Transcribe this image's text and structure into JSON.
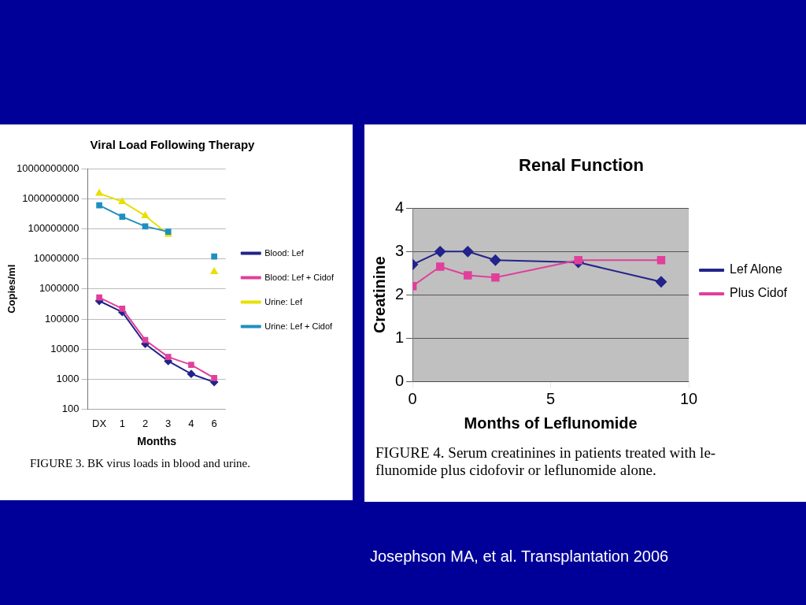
{
  "chart_data": [
    {
      "type": "line",
      "title": "Viral Load Following Therapy",
      "xlabel": "Months",
      "ylabel": "Copies/ml",
      "categories": [
        "DX",
        "1",
        "2",
        "3",
        "4",
        "6"
      ],
      "log": "y",
      "ylim": [
        100,
        10000000000
      ],
      "yticks": [
        100,
        1000,
        10000,
        100000,
        1000000,
        10000000,
        100000000,
        1000000000,
        10000000000
      ],
      "grid": "y",
      "legend": "right",
      "series": [
        {
          "name": "Blood: Lef",
          "color": "#23238c",
          "marker": "diamond",
          "values": [
            400000,
            170000,
            15000,
            4000,
            1500,
            800
          ]
        },
        {
          "name": "Blood: Lef + Cidof",
          "color": "#e0409a",
          "marker": "square",
          "values": [
            520000,
            220000,
            20000,
            5500,
            3000,
            1100
          ]
        },
        {
          "name": "Urine: Lef",
          "color": "#e8e000",
          "marker": "triangle",
          "values": [
            1500000000,
            800000000,
            270000000,
            65000000,
            null,
            3700000
          ]
        },
        {
          "name": "Urine: Lef + Cidof",
          "color": "#1f8fbf",
          "marker": "square",
          "values": [
            600000000,
            250000000,
            120000000,
            80000000,
            null,
            12000000
          ]
        }
      ],
      "annotations": [
        "FIGURE 3.   BK virus loads in blood and urine."
      ]
    },
    {
      "type": "line",
      "title": "Renal Function",
      "xlabel": "Months of Leflunomide",
      "ylabel": "Creatinine",
      "xlim": [
        0,
        10
      ],
      "xticks": [
        0,
        5,
        10
      ],
      "ylim": [
        0,
        4
      ],
      "yticks": [
        0,
        1,
        2,
        3,
        4
      ],
      "grid": "y",
      "legend": "right",
      "series": [
        {
          "name": "Lef Alone",
          "color": "#23238c",
          "marker": "diamond",
          "x": [
            0,
            1,
            2,
            3,
            6,
            9
          ],
          "values": [
            2.7,
            3.0,
            3.0,
            2.8,
            2.75,
            2.3
          ]
        },
        {
          "name": "Plus Cidof",
          "color": "#e0409a",
          "marker": "square",
          "x": [
            0,
            1,
            2,
            3,
            6,
            9
          ],
          "values": [
            2.2,
            2.65,
            2.45,
            2.4,
            2.8,
            2.8
          ]
        }
      ],
      "annotations": [
        "FIGURE 4.   Serum creatinines in patients treated with le-\nflunomide plus cidofovir or leflunomide alone."
      ]
    },
    {
      "type": "other",
      "annotations": [
        "Josephson MA, et al. Transplantation 2006"
      ]
    }
  ]
}
